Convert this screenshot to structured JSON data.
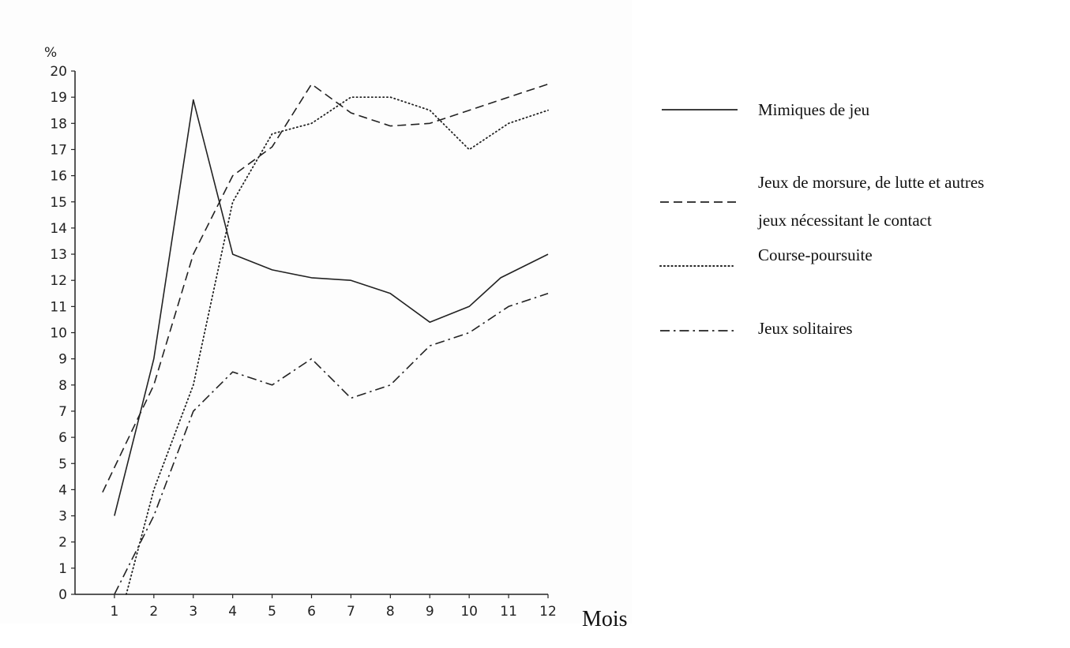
{
  "chart_data": {
    "type": "line",
    "x": [
      1,
      2,
      3,
      4,
      5,
      6,
      7,
      8,
      9,
      10,
      11,
      12
    ],
    "x_tick_labels": [
      "1",
      "2",
      "3",
      "4",
      "5",
      "6",
      "7",
      "8",
      "9",
      "10",
      "11",
      "12"
    ],
    "y_tick_labels": [
      "0",
      "1",
      "2",
      "3",
      "4",
      "5",
      "6",
      "7",
      "8",
      "9",
      "10",
      "11",
      "12",
      "13",
      "14",
      "15",
      "16",
      "17",
      "18",
      "19",
      "20"
    ],
    "xlabel": "Mois",
    "ylabel": "%",
    "xlim": [
      0,
      12
    ],
    "ylim": [
      0,
      20
    ],
    "grid": false,
    "legend_position": "right",
    "series": [
      {
        "name": "Mimiques de jeu",
        "style": "solid",
        "color": "#222222",
        "points": [
          [
            1,
            3
          ],
          [
            2,
            9
          ],
          [
            3,
            18.9
          ],
          [
            4,
            13
          ],
          [
            5,
            12.4
          ],
          [
            6,
            12.1
          ],
          [
            7,
            12
          ],
          [
            8,
            11.5
          ],
          [
            9,
            10.4
          ],
          [
            10,
            11
          ],
          [
            10.8,
            12.1
          ],
          [
            12,
            13
          ]
        ]
      },
      {
        "name": "Jeux de morsure, de lutte et autres jeux nécessitant le contact",
        "legend_lines": [
          "Jeux de morsure, de lutte et autres",
          "jeux nécessitant le contact"
        ],
        "style": "dashed",
        "color": "#222222",
        "points": [
          [
            0.7,
            3.9
          ],
          [
            2,
            8
          ],
          [
            3,
            13
          ],
          [
            4,
            16
          ],
          [
            5,
            17.1
          ],
          [
            6,
            19.5
          ],
          [
            7,
            18.4
          ],
          [
            8,
            17.9
          ],
          [
            9,
            18
          ],
          [
            10,
            18.5
          ],
          [
            11,
            19
          ],
          [
            12,
            19.5
          ]
        ]
      },
      {
        "name": "Course-poursuite",
        "style": "dotted",
        "color": "#222222",
        "points": [
          [
            1.3,
            0
          ],
          [
            2,
            4
          ],
          [
            3,
            8
          ],
          [
            4,
            15
          ],
          [
            5,
            17.6
          ],
          [
            6,
            18
          ],
          [
            7,
            19
          ],
          [
            8,
            19
          ],
          [
            9,
            18.5
          ],
          [
            10,
            17
          ],
          [
            11,
            18
          ],
          [
            12,
            18.5
          ]
        ]
      },
      {
        "name": "Jeux solitaires",
        "style": "dashdot",
        "color": "#222222",
        "points": [
          [
            1,
            0
          ],
          [
            2,
            3
          ],
          [
            3,
            7
          ],
          [
            4,
            8.5
          ],
          [
            5,
            8
          ],
          [
            6,
            9
          ],
          [
            7,
            7.5
          ],
          [
            8,
            8
          ],
          [
            9,
            9.5
          ],
          [
            10,
            10
          ],
          [
            11,
            11
          ],
          [
            12,
            11.5
          ]
        ]
      }
    ]
  }
}
